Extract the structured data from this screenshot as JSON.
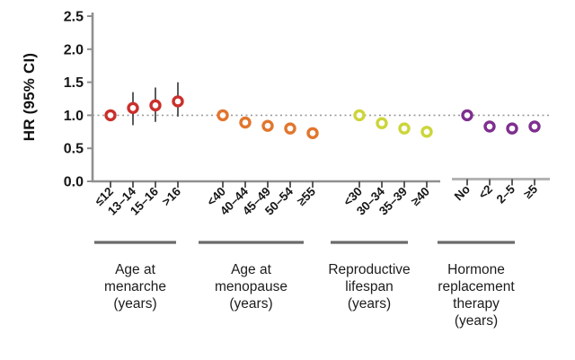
{
  "figure": {
    "background": "#ffffff",
    "axis_color": "#8f8f8f",
    "secondary_axis_color": "#b3b3b3",
    "tick_color": "#4a4a4a",
    "text_color": "#161616",
    "error_bar_color": "#3f3f3f",
    "reference_line_color": "#9a9a9a",
    "underline_color": "#6b6b6b"
  },
  "chart_data": {
    "type": "scatter",
    "title": "",
    "xlabel": "",
    "ylabel": "HR (95% CI)",
    "ylim": [
      0.0,
      2.5
    ],
    "yticks": [
      "0.0",
      "0.5",
      "1.0",
      "1.5",
      "2.0",
      "2.5"
    ],
    "grid": false,
    "legend": false,
    "reference_line_y": 1.0,
    "groups": [
      {
        "label_lines": [
          "Age at",
          "menarche",
          "(years)"
        ],
        "color": "#c9302c",
        "categories": [
          "≤12",
          "13–14",
          "15–16",
          ">16"
        ],
        "hr": [
          1.0,
          1.11,
          1.15,
          1.21
        ],
        "ci_low": [
          null,
          0.85,
          0.9,
          0.98
        ],
        "ci_high": [
          null,
          1.35,
          1.42,
          1.5
        ]
      },
      {
        "label_lines": [
          "Age at",
          "menopause",
          "(years)"
        ],
        "color": "#e1762d",
        "categories": [
          "<40",
          "40–44",
          "45–49",
          "50–54",
          "≥55"
        ],
        "hr": [
          1.0,
          0.89,
          0.84,
          0.8,
          0.73
        ],
        "ci_low": [
          null,
          0.84,
          0.8,
          0.76,
          0.68
        ],
        "ci_high": [
          null,
          0.94,
          0.88,
          0.84,
          0.78
        ]
      },
      {
        "label_lines": [
          "Reproductive",
          "lifespan",
          "(years)"
        ],
        "color": "#ccd53a",
        "categories": [
          "<30",
          "30–34",
          "35–39",
          "≥40"
        ],
        "hr": [
          1.0,
          0.88,
          0.8,
          0.75
        ],
        "ci_low": [
          null,
          0.83,
          0.75,
          0.7
        ],
        "ci_high": [
          null,
          0.93,
          0.85,
          0.8
        ]
      },
      {
        "label_lines": [
          "Hormone",
          "replacement",
          "therapy",
          "(years)"
        ],
        "color": "#7e2f8e",
        "categories": [
          "No",
          "<2",
          "2–5",
          "≥5"
        ],
        "hr": [
          1.0,
          0.83,
          0.8,
          0.83
        ],
        "ci_low": [
          null,
          0.78,
          0.75,
          0.78
        ],
        "ci_high": [
          null,
          0.88,
          0.85,
          0.88
        ]
      }
    ]
  }
}
